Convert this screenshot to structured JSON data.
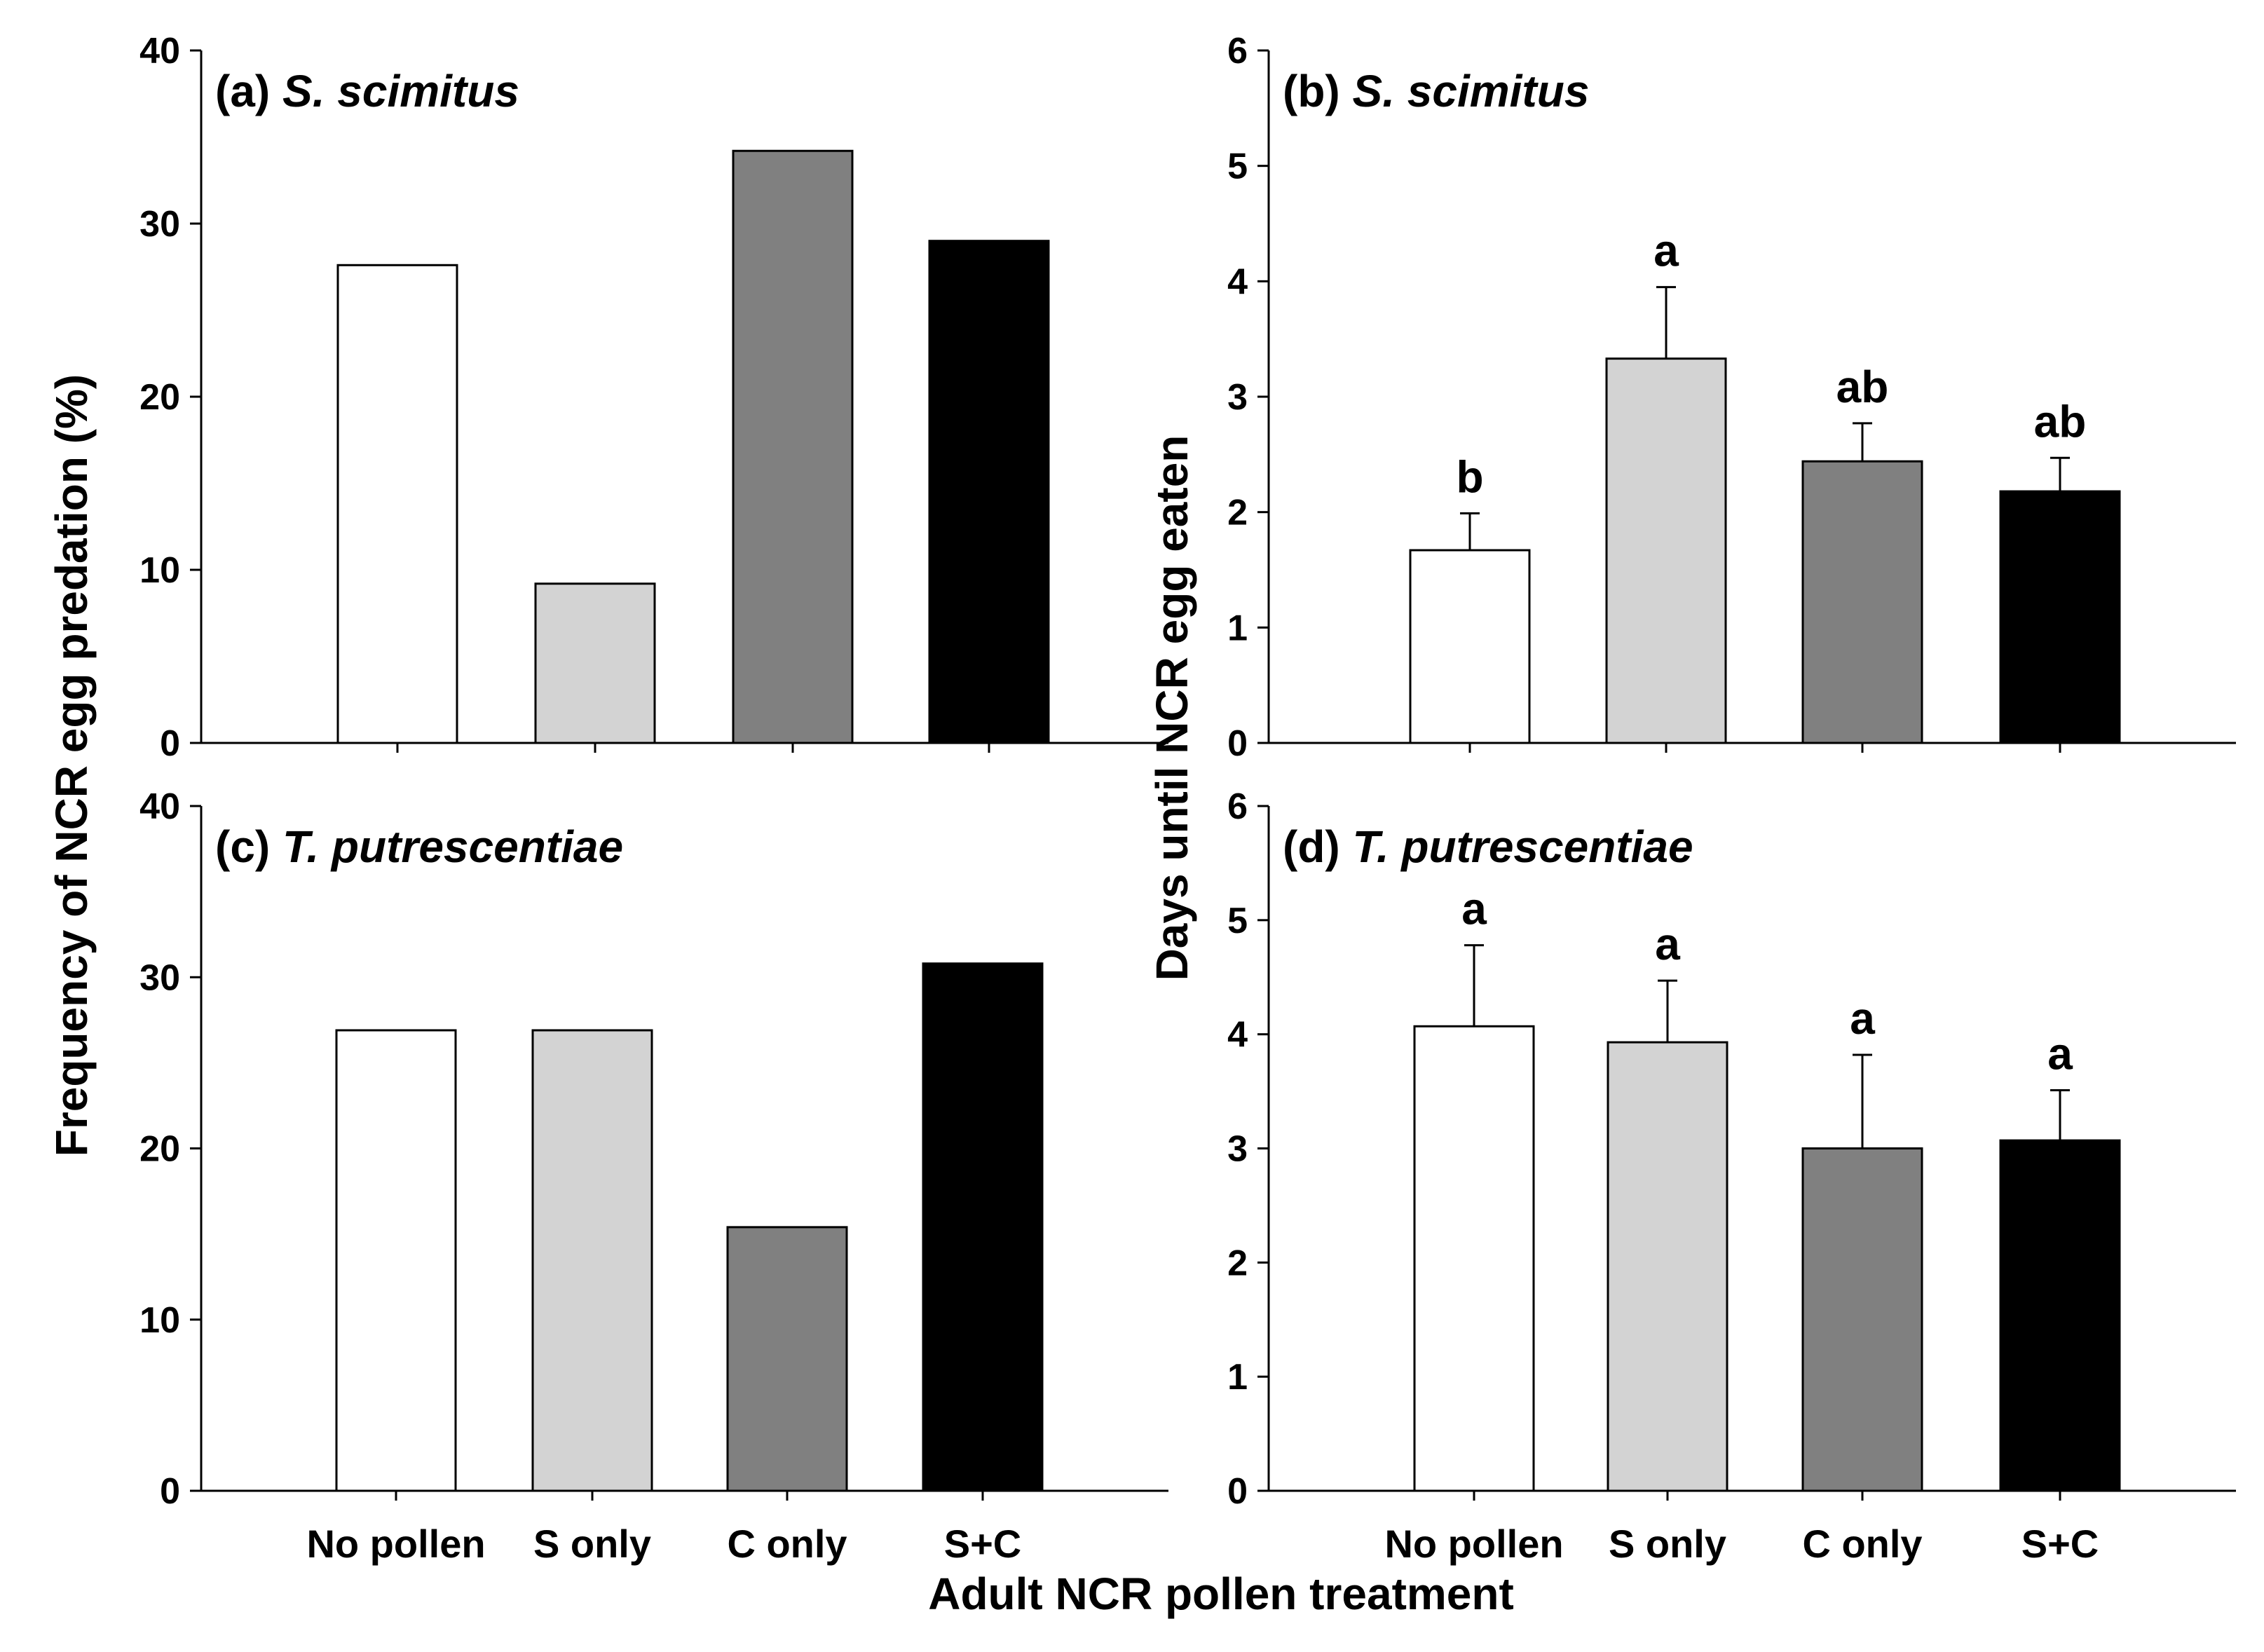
{
  "figure": {
    "ylabel_left": "Frequency of NCR egg predation (%)",
    "ylabel_right": "Days until NCR egg eaten",
    "xlabel": "Adult NCR pollen treatment"
  },
  "colors": {
    "No pollen": "#ffffff",
    "S only": "#d3d3d3",
    "C only": "#808080",
    "S+C": "#000000"
  },
  "chart_data": [
    {
      "panel": "a",
      "type": "bar",
      "title_prefix": "(a)",
      "title_species": "S. scimitus",
      "categories": [
        "No pollen",
        "S only",
        "C only",
        "S+C"
      ],
      "values": [
        27.6,
        9.2,
        34.2,
        29.0
      ],
      "ylim": [
        0,
        40
      ],
      "yticks": [
        "0",
        "10",
        "20",
        "30",
        "40"
      ],
      "ylabel": "Frequency of NCR egg predation (%)",
      "xlabel": "",
      "show_tick_labels": false
    },
    {
      "panel": "b",
      "type": "bar",
      "title_prefix": "(b)",
      "title_species": "S. scimitus",
      "categories": [
        "No pollen",
        "S only",
        "C only",
        "S+C"
      ],
      "values": [
        1.67,
        3.33,
        2.44,
        2.18
      ],
      "errors": [
        0.32,
        0.62,
        0.33,
        0.29
      ],
      "letters": [
        "b",
        "a",
        "ab",
        "ab"
      ],
      "ylim": [
        0,
        6
      ],
      "yticks": [
        "0",
        "1",
        "2",
        "3",
        "4",
        "5",
        "6"
      ],
      "ylabel": "Days until NCR egg eaten",
      "xlabel": "",
      "show_tick_labels": false
    },
    {
      "panel": "c",
      "type": "bar",
      "title_prefix": "(c)",
      "title_species": "T. putrescentiae",
      "categories": [
        "No pollen",
        "S only",
        "C only",
        "S+C"
      ],
      "values": [
        26.9,
        26.9,
        15.4,
        30.8
      ],
      "ylim": [
        0,
        40
      ],
      "yticks": [
        "0",
        "10",
        "20",
        "30",
        "40"
      ],
      "ylabel": "Frequency of NCR egg predation (%)",
      "xlabel": "Adult NCR pollen treatment",
      "show_tick_labels": true
    },
    {
      "panel": "d",
      "type": "bar",
      "title_prefix": "(d)",
      "title_species": "T. putrescentiae",
      "categories": [
        "No pollen",
        "S only",
        "C only",
        "S+C"
      ],
      "values": [
        4.07,
        3.93,
        3.0,
        3.07
      ],
      "errors": [
        0.71,
        0.54,
        0.82,
        0.44
      ],
      "letters": [
        "a",
        "a",
        "a",
        "a"
      ],
      "ylim": [
        0,
        6
      ],
      "yticks": [
        "0",
        "1",
        "2",
        "3",
        "4",
        "5",
        "6"
      ],
      "ylabel": "Days until NCR egg eaten",
      "xlabel": "Adult NCR pollen treatment",
      "show_tick_labels": true
    }
  ]
}
